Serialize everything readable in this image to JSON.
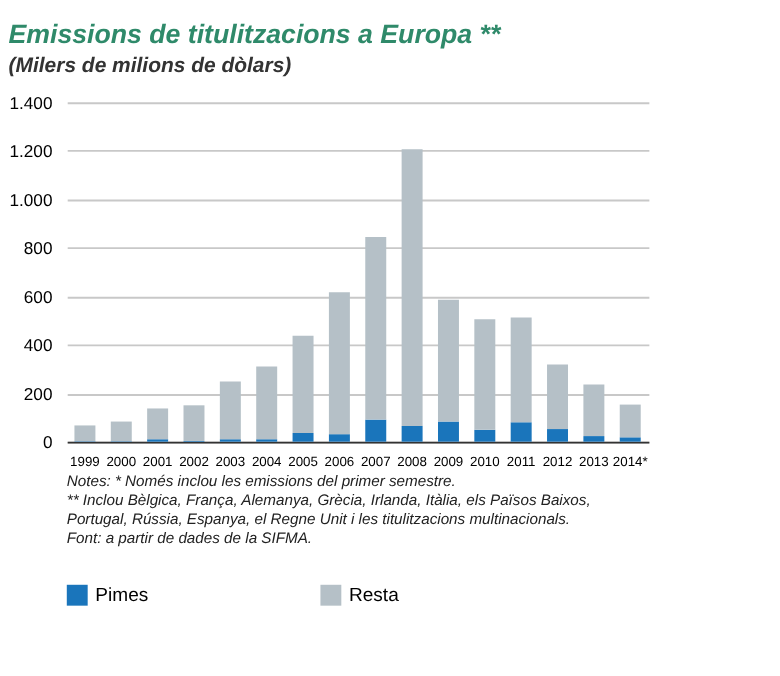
{
  "chart_data": {
    "type": "bar",
    "title": "Emissions de titulitzacions a Europa **",
    "subtitle": "(Milers de milions de dòlars)",
    "categories": [
      "1999",
      "2000",
      "2001",
      "2002",
      "2003",
      "2004",
      "2005",
      "2006",
      "2007",
      "2008",
      "2009",
      "2010",
      "2011",
      "2012",
      "2013",
      "2014*"
    ],
    "stacked": true,
    "series": [
      {
        "name": "Pimes",
        "color": "#1a75bb",
        "values": [
          2,
          2,
          10,
          3,
          10,
          10,
          36,
          31,
          91,
          65,
          83,
          49,
          80,
          52,
          23,
          18
        ]
      },
      {
        "name": "Resta",
        "color": "#b5c0c7",
        "values": [
          65,
          81,
          127,
          147,
          238,
          300,
          401,
          585,
          753,
          1141,
          502,
          456,
          432,
          266,
          213,
          135
        ]
      }
    ],
    "ylim": [
      0,
      1400
    ],
    "yticks": [
      0,
      200,
      400,
      600,
      800,
      {
        "value": 1000,
        "label": "1.000"
      },
      {
        "value": 1200,
        "label": "1.200"
      },
      {
        "value": 1400,
        "label": "1.400"
      }
    ],
    "grid": "y",
    "legend": "bottom",
    "annotations": [
      "Notes: * Només inclou les emissions del primer semestre.",
      "** Inclou Bèlgica, França, Alemanya, Grècia, Irlanda, Itàlia, els Països Baixos, Portugal, Rússia, Espanya, el Regne Unit i les titulitzacions multinacionals.",
      "Font: a partir de dades de la SIFMA."
    ]
  }
}
